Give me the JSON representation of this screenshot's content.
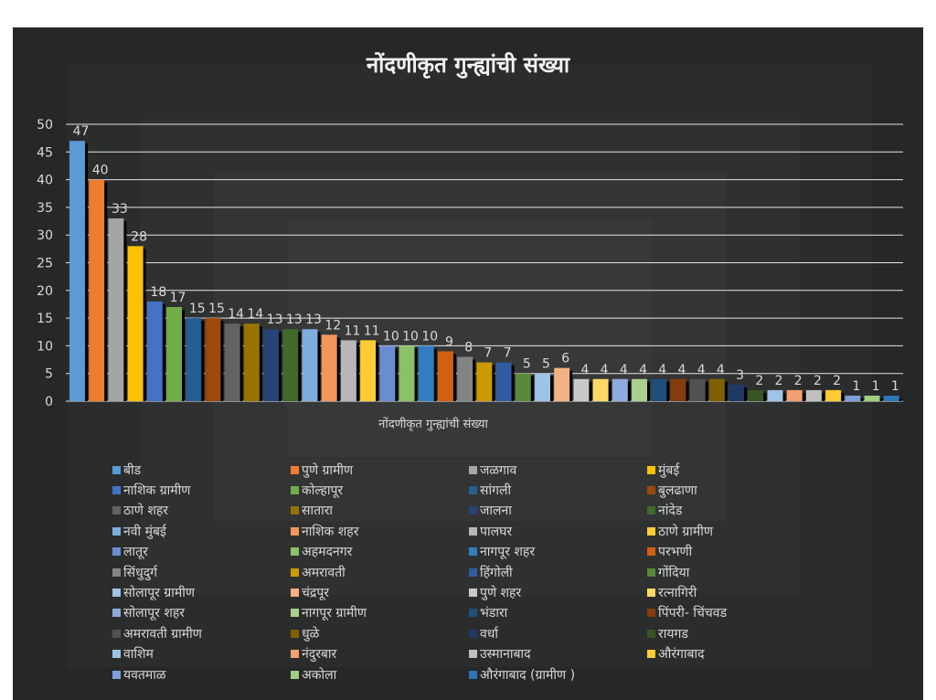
{
  "chart_data": {
    "type": "bar",
    "title": "नोंदणीकृत गुन्ह्यांची संख्या",
    "xlabel": "नोंदणीकृत गुन्ह्यांची संख्या",
    "ylabel": "",
    "ylim": [
      0,
      50
    ],
    "yticks": [
      0,
      5,
      10,
      15,
      20,
      25,
      30,
      35,
      40,
      45,
      50
    ],
    "grid": true,
    "legend_placement": "bottom",
    "categories": [
      "बीड",
      "पुणे ग्रामीण",
      "जळगाव",
      "मुंबई",
      "नाशिक ग्रामीण",
      "कोल्हापूर",
      "सांगली",
      "बुलढाणा",
      "ठाणे शहर",
      "सातारा",
      "जालना",
      "नांदेड",
      "नवी मुंबई",
      "नाशिक शहर",
      "पालघर",
      "ठाणे ग्रामीण",
      "लातूर",
      "अहमदनगर",
      "नागपूर शहर",
      "परभणी",
      "सिंधुदुर्ग",
      "अमरावती",
      "हिंगोली",
      "गोंदिया",
      "सोलापूर ग्रामीण",
      "चंद्रपूर",
      "पुणे शहर",
      "रत्नागिरी",
      "सोलापूर शहर",
      "नागपूर ग्रामीण",
      "भंडारा",
      "पिंपरी- चिंचवड",
      "अमरावती ग्रामीण",
      "धुळे",
      "वर्धा",
      "रायगड",
      "वाशिम",
      "नंदुरबार",
      "उस्मानाबाद",
      "औरंगाबाद",
      "यवतमाळ",
      "अकोला",
      "औरंगाबाद (ग्रामीण )"
    ],
    "values": [
      47,
      40,
      33,
      28,
      18,
      17,
      15,
      15,
      14,
      14,
      13,
      13,
      13,
      12,
      11,
      11,
      10,
      10,
      10,
      9,
      8,
      7,
      7,
      5,
      5,
      6,
      4,
      4,
      4,
      4,
      4,
      4,
      4,
      4,
      3,
      2,
      2,
      2,
      2,
      2,
      1,
      1,
      1
    ],
    "colors": [
      "#5b9bd5",
      "#ed7d31",
      "#a5a5a5",
      "#ffc000",
      "#4472c4",
      "#70ad47",
      "#255e91",
      "#9e480e",
      "#636363",
      "#997300",
      "#264478",
      "#43682b",
      "#7cafdd",
      "#f1975a",
      "#b7b7b7",
      "#ffcd33",
      "#698ed0",
      "#8cc168",
      "#327dc2",
      "#d26012",
      "#848484",
      "#cc9a00",
      "#335aa1",
      "#5a8a39",
      "#9dc3e6",
      "#f4b183",
      "#c9c9c9",
      "#ffd966",
      "#8faadc",
      "#a9d18e",
      "#1f4e79",
      "#843c0c",
      "#525252",
      "#7f6000",
      "#203864",
      "#375623",
      "#9dc3e6",
      "#f4a070",
      "#c0c0c0",
      "#ffcc33",
      "#7f9fdc",
      "#a0cf80",
      "#2e75b6"
    ]
  }
}
